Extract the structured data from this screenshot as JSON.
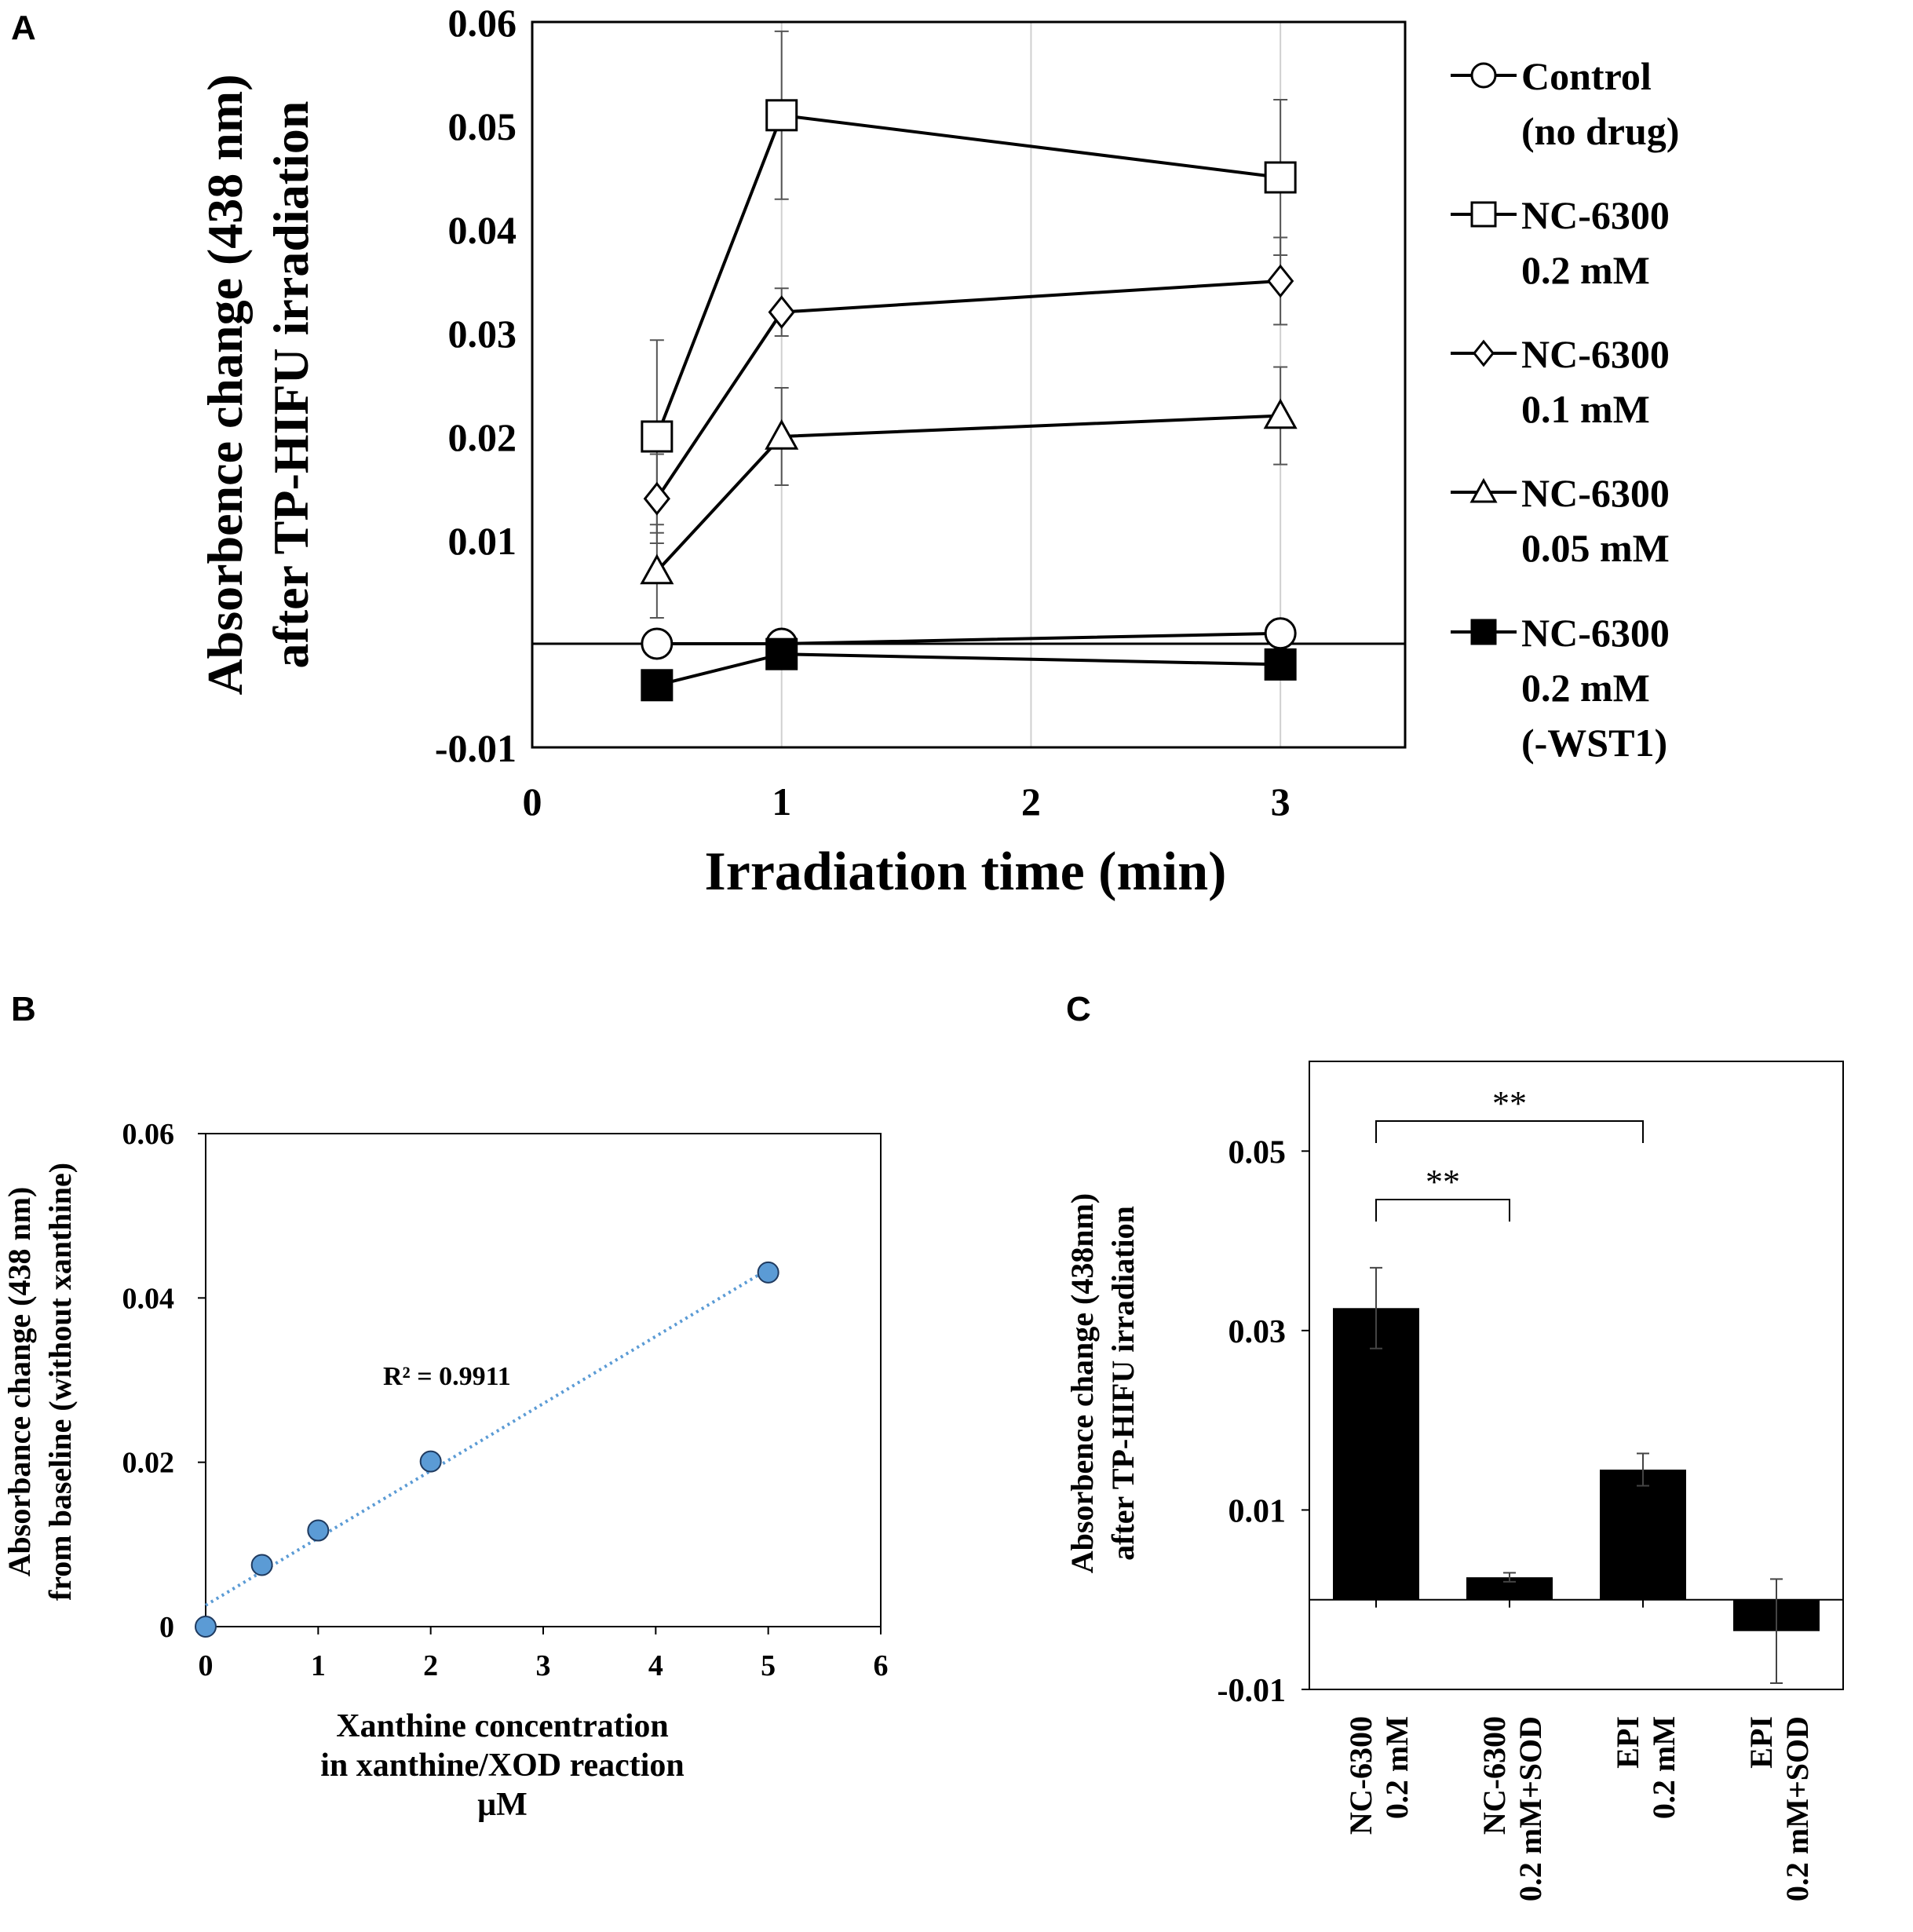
{
  "chart_data": [
    {
      "panel": "A",
      "type": "line",
      "xlabel": "Irradiation time (min)",
      "ylabel_lines": [
        "Absorbence change (438 nm)",
        "after TP-HIFU irradiation"
      ],
      "xlim": [
        0,
        3.5
      ],
      "ylim": [
        -0.01,
        0.06
      ],
      "xticks": [
        "0",
        "1",
        "2",
        "3"
      ],
      "yticks": [
        "-0.01",
        "0.01",
        "0.02",
        "0.03",
        "0.04",
        "0.05",
        "0.06"
      ],
      "series": [
        {
          "name": "Control (no drug)",
          "legend_lines": [
            "Control",
            "(no drug)"
          ],
          "marker": "circle",
          "filled": false,
          "x": [
            0.5,
            1,
            3
          ],
          "y": [
            0.0,
            0.0,
            0.001
          ],
          "err": [
            null,
            null,
            null
          ]
        },
        {
          "name": "NC-6300 0.2 mM",
          "legend_lines": [
            "NC-6300",
            "0.2 mM"
          ],
          "marker": "square",
          "filled": false,
          "x": [
            0.5,
            1,
            3
          ],
          "y": [
            0.02,
            0.051,
            0.045
          ],
          "err": [
            0.0093,
            0.0081,
            0.0075
          ]
        },
        {
          "name": "NC-6300 0.1 mM",
          "legend_lines": [
            "NC-6300",
            "0.1 mM"
          ],
          "marker": "diamond",
          "filled": false,
          "x": [
            0.5,
            1,
            3
          ],
          "y": [
            0.014,
            0.032,
            0.035
          ],
          "err": [
            0.0043,
            0.0023,
            0.0042
          ]
        },
        {
          "name": "NC-6300 0.05 mM",
          "legend_lines": [
            "NC-6300",
            "0.05 mM"
          ],
          "marker": "triangle",
          "filled": false,
          "x": [
            0.5,
            1,
            3
          ],
          "y": [
            0.007,
            0.02,
            0.022
          ],
          "err": [
            0.0045,
            0.0047,
            0.0047
          ]
        },
        {
          "name": "NC-6300 0.2 mM (-WST1)",
          "legend_lines": [
            "NC-6300",
            "0.2 mM",
            "(-WST1)"
          ],
          "marker": "square",
          "filled": true,
          "x": [
            0.5,
            1,
            3
          ],
          "y": [
            -0.004,
            -0.001,
            -0.002
          ],
          "err": [
            null,
            null,
            null
          ]
        }
      ]
    },
    {
      "panel": "B",
      "type": "scatter",
      "xlabel_lines": [
        "Xanthine concentration",
        "in xanthine/XOD reaction",
        "μM"
      ],
      "ylabel_lines": [
        "Absorbance change (438 nm)",
        "from baseline (without xanthine)"
      ],
      "xlim": [
        0,
        6
      ],
      "ylim": [
        0,
        0.06
      ],
      "xticks": [
        "0",
        "1",
        "2",
        "3",
        "4",
        "5",
        "6"
      ],
      "yticks": [
        "0",
        "0.02",
        "0.04",
        "0.06"
      ],
      "x": [
        0,
        0.5,
        1,
        2,
        5
      ],
      "y": [
        0.0,
        0.0075,
        0.0117,
        0.0201,
        0.0431
      ],
      "trendline": {
        "x": [
          0,
          5
        ],
        "y": [
          0.0026,
          0.0435
        ]
      },
      "annotation": "R² = 0.9911",
      "color": "#5b9bd5"
    },
    {
      "panel": "C",
      "type": "bar",
      "ylabel_lines": [
        "Absorbence change (438nm)",
        "after TP-HIFU irradiation"
      ],
      "ylim": [
        -0.01,
        0.06
      ],
      "yticks": [
        "-0.01",
        "0.01",
        "0.03",
        "0.05"
      ],
      "categories": [
        {
          "lines": [
            "NC-6300",
            "0.2 mM"
          ]
        },
        {
          "lines": [
            "NC-6300",
            "0.2 mM+SOD"
          ]
        },
        {
          "lines": [
            "EPI",
            "0.2 mM"
          ]
        },
        {
          "lines": [
            "EPI",
            "0.2 mM+SOD"
          ]
        }
      ],
      "values": [
        0.0325,
        0.0025,
        0.0145,
        -0.0035
      ],
      "errors": [
        0.0045,
        0.0005,
        0.0018,
        0.0058
      ],
      "significance": [
        {
          "from": 0,
          "to": 1,
          "label": "**"
        },
        {
          "from": 0,
          "to": 2,
          "label": "**"
        }
      ]
    }
  ],
  "panel_labels": {
    "a": "A",
    "b": "B",
    "c": "C"
  }
}
